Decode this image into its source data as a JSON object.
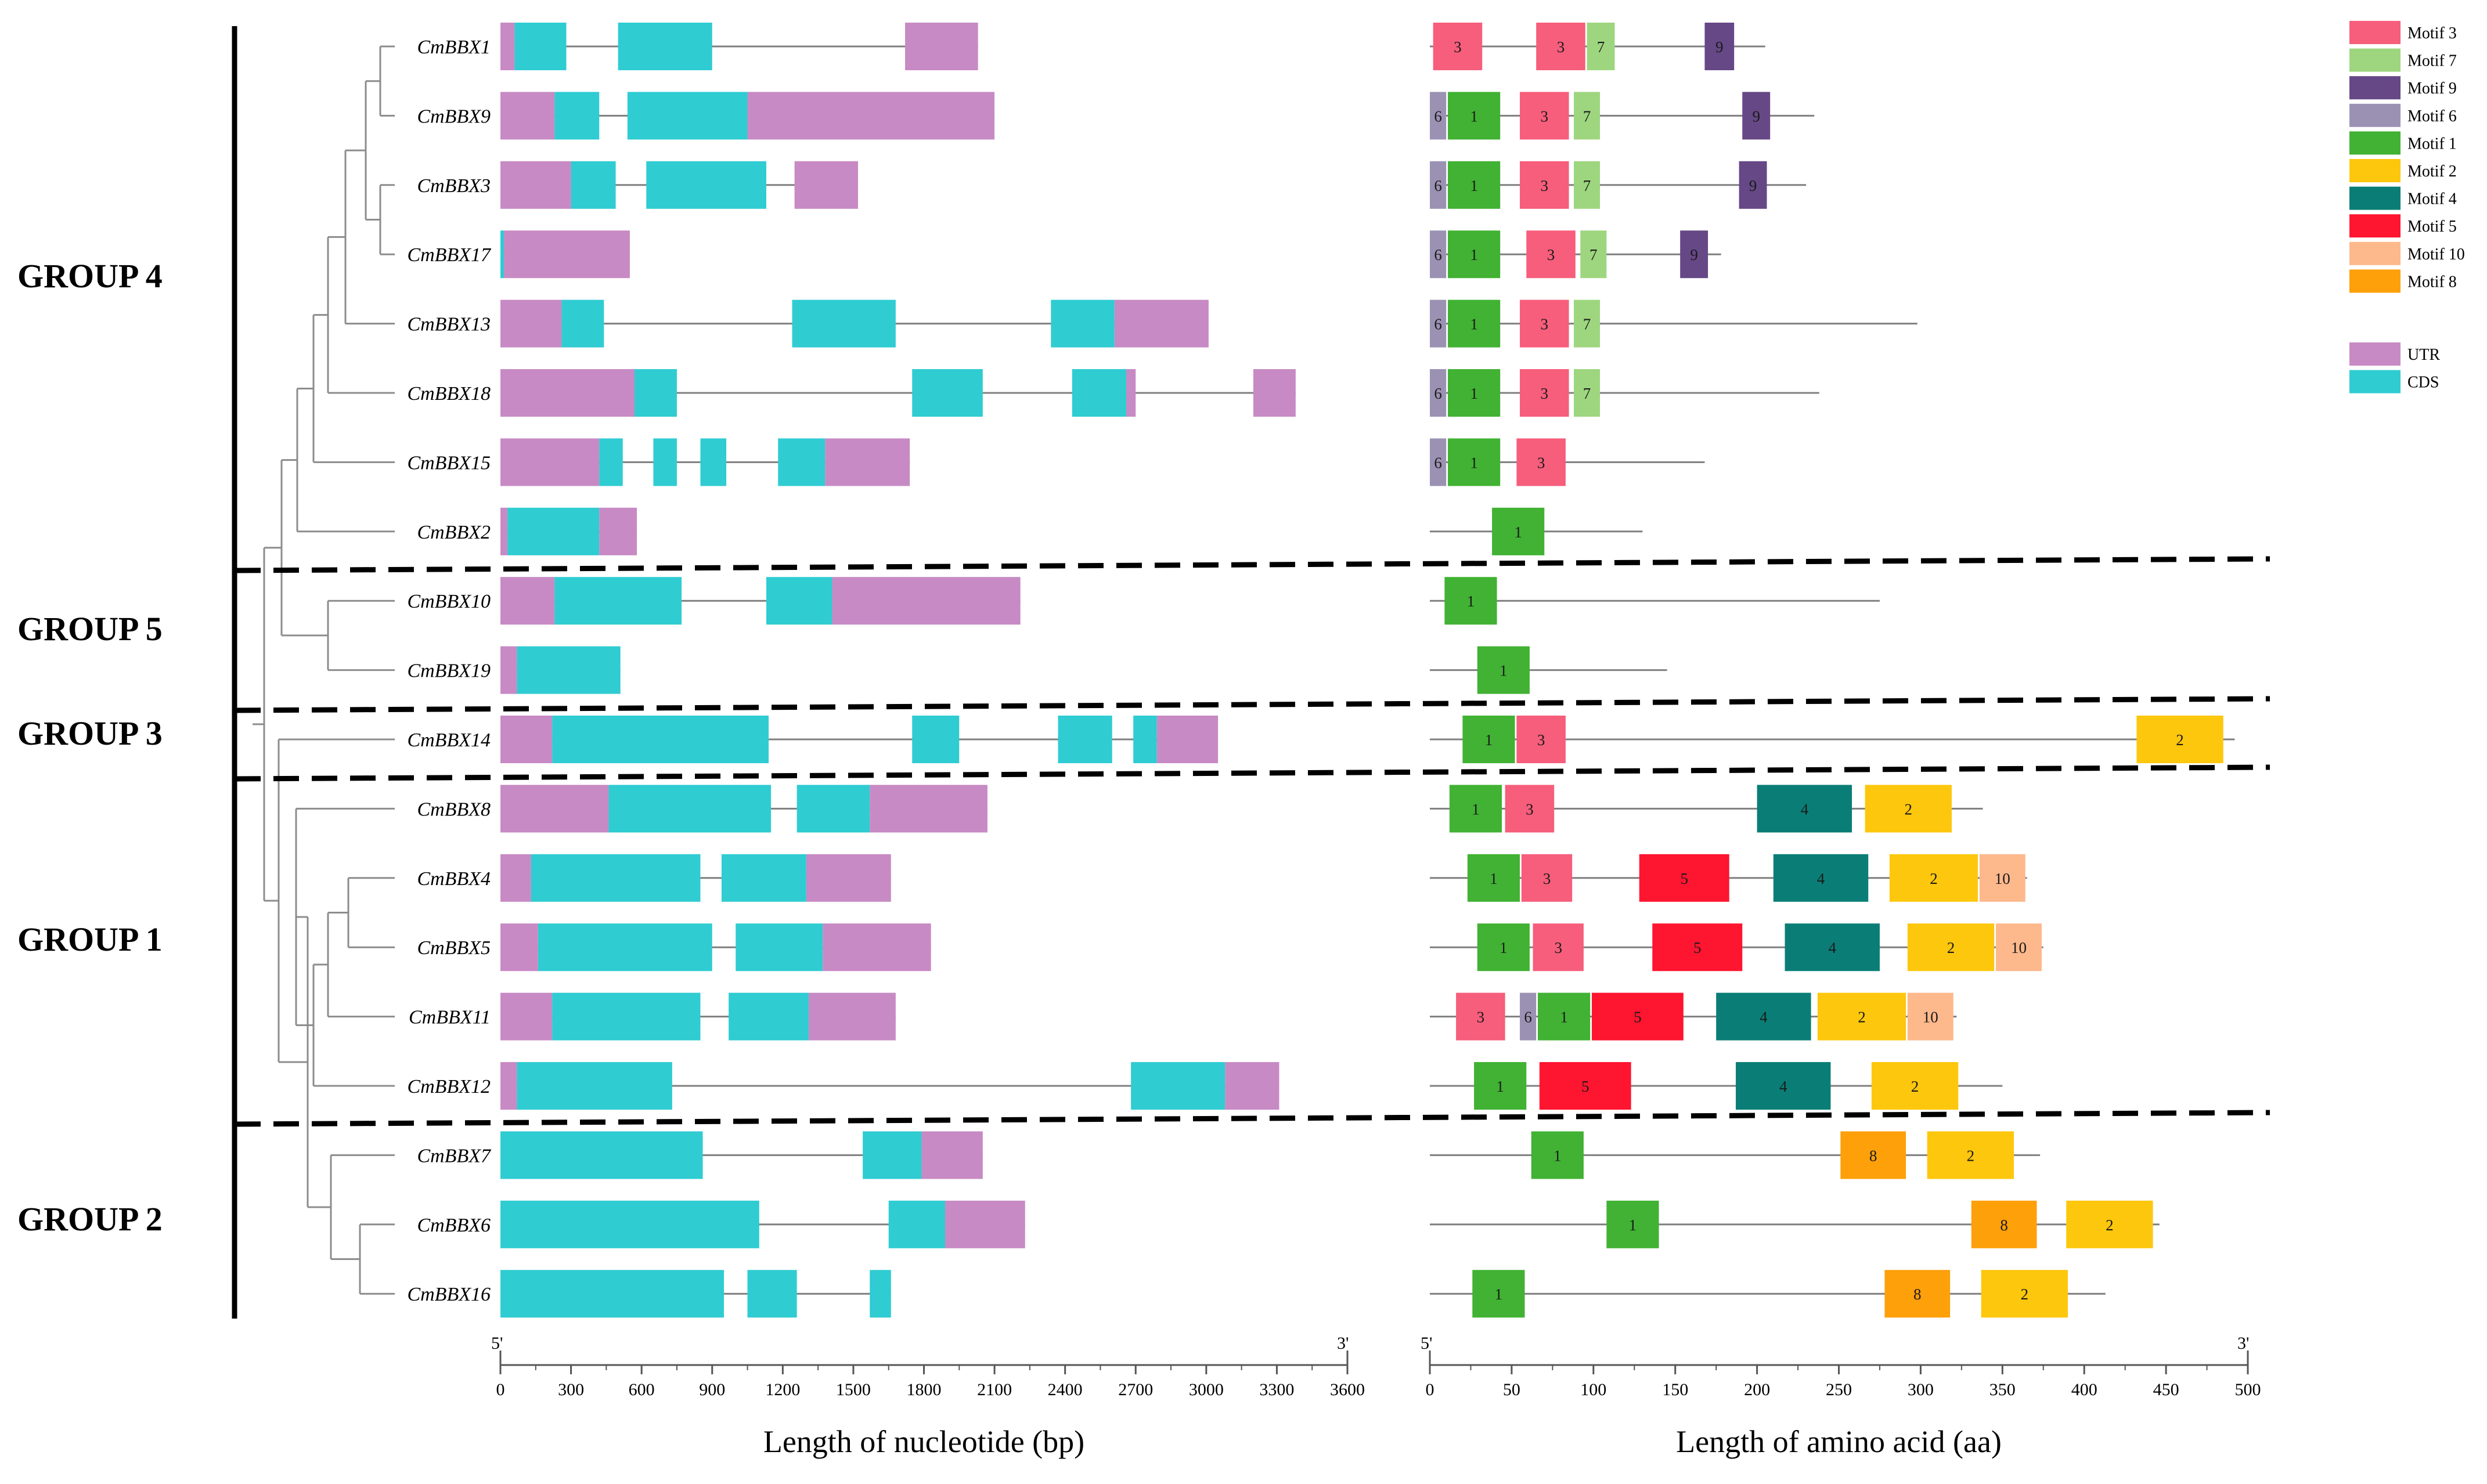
{
  "groups": [
    "GROUP 4",
    "GROUP 5",
    "GROUP 3",
    "GROUP 1",
    "GROUP 2"
  ],
  "genes": [
    {
      "name": "CmBBX1",
      "group": "GROUP 4",
      "length_bp": 2030,
      "length_aa": 205,
      "structure": [
        [
          "UTR",
          0,
          60
        ],
        [
          "CDS",
          60,
          280
        ],
        [
          "CDS",
          500,
          900
        ],
        [
          "UTR",
          1720,
          2030
        ]
      ],
      "motifs": [
        [
          3,
          2,
          32
        ],
        [
          3,
          65,
          95
        ],
        [
          7,
          96,
          113
        ],
        [
          9,
          168,
          186
        ]
      ]
    },
    {
      "name": "CmBBX9",
      "group": "GROUP 4",
      "length_bp": 2100,
      "length_aa": 235,
      "structure": [
        [
          "UTR",
          0,
          230
        ],
        [
          "CDS",
          230,
          420
        ],
        [
          "CDS",
          540,
          1050
        ],
        [
          "UTR",
          1050,
          2100
        ]
      ],
      "motifs": [
        [
          6,
          0,
          10
        ],
        [
          1,
          11,
          43
        ],
        [
          3,
          55,
          85
        ],
        [
          7,
          88,
          104
        ],
        [
          9,
          191,
          208
        ]
      ]
    },
    {
      "name": "CmBBX3",
      "group": "GROUP 4",
      "length_bp": 1520,
      "length_aa": 230,
      "structure": [
        [
          "UTR",
          0,
          300
        ],
        [
          "CDS",
          300,
          490
        ],
        [
          "CDS",
          620,
          1130
        ],
        [
          "UTR",
          1250,
          1520
        ]
      ],
      "motifs": [
        [
          6,
          0,
          10
        ],
        [
          1,
          11,
          43
        ],
        [
          3,
          55,
          85
        ],
        [
          7,
          88,
          104
        ],
        [
          9,
          189,
          206
        ]
      ]
    },
    {
      "name": "CmBBX17",
      "group": "GROUP 4",
      "length_bp": 550,
      "length_aa": 178,
      "structure": [
        [
          "CDS",
          0,
          15
        ],
        [
          "UTR",
          15,
          550
        ]
      ],
      "motifs": [
        [
          6,
          0,
          10
        ],
        [
          1,
          11,
          43
        ],
        [
          3,
          59,
          89
        ],
        [
          7,
          92,
          108
        ],
        [
          9,
          153,
          170
        ]
      ]
    },
    {
      "name": "CmBBX13",
      "group": "GROUP 4",
      "length_bp": 3010,
      "length_aa": 298,
      "structure": [
        [
          "UTR",
          0,
          260
        ],
        [
          "CDS",
          260,
          440
        ],
        [
          "CDS",
          1240,
          1680
        ],
        [
          "CDS",
          2340,
          2610
        ],
        [
          "UTR",
          2610,
          3010
        ]
      ],
      "motifs": [
        [
          6,
          0,
          10
        ],
        [
          1,
          11,
          43
        ],
        [
          3,
          55,
          85
        ],
        [
          7,
          88,
          104
        ]
      ]
    },
    {
      "name": "CmBBX18",
      "group": "GROUP 4",
      "length_bp": 3380,
      "length_aa": 238,
      "structure": [
        [
          "UTR",
          0,
          570
        ],
        [
          "CDS",
          570,
          750
        ],
        [
          "CDS",
          1750,
          2050
        ],
        [
          "CDS",
          2430,
          2660
        ],
        [
          "UTR",
          2660,
          2700
        ],
        [
          "UTR",
          3200,
          3380
        ]
      ],
      "motifs": [
        [
          6,
          0,
          10
        ],
        [
          1,
          11,
          43
        ],
        [
          3,
          55,
          85
        ],
        [
          7,
          88,
          104
        ]
      ]
    },
    {
      "name": "CmBBX15",
      "group": "GROUP 4",
      "length_bp": 1740,
      "length_aa": 168,
      "structure": [
        [
          "UTR",
          0,
          420
        ],
        [
          "CDS",
          420,
          520
        ],
        [
          "CDS",
          650,
          750
        ],
        [
          "CDS",
          850,
          960
        ],
        [
          "CDS",
          1180,
          1380
        ],
        [
          "UTR",
          1380,
          1740
        ]
      ],
      "motifs": [
        [
          6,
          0,
          10
        ],
        [
          1,
          11,
          43
        ],
        [
          3,
          53,
          83
        ]
      ]
    },
    {
      "name": "CmBBX2",
      "group": "GROUP 4",
      "length_bp": 580,
      "length_aa": 130,
      "structure": [
        [
          "UTR",
          0,
          30
        ],
        [
          "CDS",
          30,
          420
        ],
        [
          "UTR",
          420,
          580
        ]
      ],
      "motifs": [
        [
          1,
          38,
          70
        ]
      ]
    },
    {
      "name": "CmBBX10",
      "group": "GROUP 5",
      "length_bp": 2210,
      "length_aa": 275,
      "structure": [
        [
          "UTR",
          0,
          230
        ],
        [
          "CDS",
          230,
          770
        ],
        [
          "CDS",
          1130,
          1410
        ],
        [
          "UTR",
          1410,
          2210
        ]
      ],
      "motifs": [
        [
          1,
          9,
          41
        ]
      ]
    },
    {
      "name": "CmBBX19",
      "group": "GROUP 5",
      "length_bp": 510,
      "length_aa": 145,
      "structure": [
        [
          "UTR",
          0,
          70
        ],
        [
          "CDS",
          70,
          510
        ]
      ],
      "motifs": [
        [
          1,
          29,
          61
        ]
      ]
    },
    {
      "name": "CmBBX14",
      "group": "GROUP 3",
      "length_bp": 3050,
      "length_aa": 492,
      "structure": [
        [
          "UTR",
          0,
          220
        ],
        [
          "CDS",
          220,
          1140
        ],
        [
          "CDS",
          1750,
          1950
        ],
        [
          "CDS",
          2370,
          2600
        ],
        [
          "CDS",
          2690,
          2790
        ],
        [
          "UTR",
          2790,
          3050
        ]
      ],
      "motifs": [
        [
          1,
          20,
          52
        ],
        [
          3,
          53,
          83
        ],
        [
          2,
          432,
          485
        ]
      ]
    },
    {
      "name": "CmBBX8",
      "group": "GROUP 1",
      "length_bp": 2070,
      "length_aa": 338,
      "structure": [
        [
          "UTR",
          0,
          460
        ],
        [
          "CDS",
          460,
          1150
        ],
        [
          "CDS",
          1260,
          1570
        ],
        [
          "UTR",
          1570,
          2070
        ]
      ],
      "motifs": [
        [
          1,
          12,
          44
        ],
        [
          3,
          46,
          76
        ],
        [
          4,
          200,
          258
        ],
        [
          2,
          266,
          319
        ]
      ]
    },
    {
      "name": "CmBBX4",
      "group": "GROUP 1",
      "length_bp": 1660,
      "length_aa": 365,
      "structure": [
        [
          "UTR",
          0,
          130
        ],
        [
          "CDS",
          130,
          850
        ],
        [
          "CDS",
          940,
          1300
        ],
        [
          "UTR",
          1300,
          1660
        ]
      ],
      "motifs": [
        [
          1,
          23,
          55
        ],
        [
          3,
          56,
          87
        ],
        [
          5,
          128,
          183
        ],
        [
          4,
          210,
          268
        ],
        [
          2,
          281,
          335
        ],
        [
          10,
          336,
          364
        ]
      ]
    },
    {
      "name": "CmBBX5",
      "group": "GROUP 1",
      "length_bp": 1830,
      "length_aa": 375,
      "structure": [
        [
          "UTR",
          0,
          160
        ],
        [
          "CDS",
          160,
          900
        ],
        [
          "CDS",
          1000,
          1370
        ],
        [
          "UTR",
          1370,
          1830
        ]
      ],
      "motifs": [
        [
          1,
          29,
          61
        ],
        [
          3,
          63,
          94
        ],
        [
          5,
          136,
          191
        ],
        [
          4,
          217,
          275
        ],
        [
          2,
          292,
          345
        ],
        [
          10,
          346,
          374
        ]
      ]
    },
    {
      "name": "CmBBX11",
      "group": "GROUP 1",
      "length_bp": 1680,
      "length_aa": 322,
      "structure": [
        [
          "UTR",
          0,
          220
        ],
        [
          "CDS",
          220,
          850
        ],
        [
          "CDS",
          970,
          1310
        ],
        [
          "UTR",
          1310,
          1680
        ]
      ],
      "motifs": [
        [
          3,
          16,
          46
        ],
        [
          6,
          55,
          65
        ],
        [
          1,
          66,
          98
        ],
        [
          5,
          99,
          155
        ],
        [
          4,
          175,
          233
        ],
        [
          2,
          237,
          291
        ],
        [
          10,
          292,
          320
        ]
      ]
    },
    {
      "name": "CmBBX12",
      "group": "GROUP 1",
      "length_bp": 3310,
      "length_aa": 350,
      "structure": [
        [
          "UTR",
          0,
          70
        ],
        [
          "CDS",
          70,
          730
        ],
        [
          "CDS",
          2680,
          3080
        ],
        [
          "UTR",
          3080,
          3310
        ]
      ],
      "motifs": [
        [
          1,
          27,
          59
        ],
        [
          5,
          67,
          123
        ],
        [
          4,
          187,
          245
        ],
        [
          2,
          270,
          323
        ]
      ]
    },
    {
      "name": "CmBBX7",
      "group": "GROUP 2",
      "length_bp": 2050,
      "length_aa": 373,
      "structure": [
        [
          "CDS",
          0,
          860
        ],
        [
          "CDS",
          1540,
          1790
        ],
        [
          "UTR",
          1790,
          2050
        ]
      ],
      "motifs": [
        [
          1,
          62,
          94
        ],
        [
          8,
          251,
          291
        ],
        [
          2,
          304,
          357
        ]
      ]
    },
    {
      "name": "CmBBX6",
      "group": "GROUP 2",
      "length_bp": 2230,
      "length_aa": 446,
      "structure": [
        [
          "CDS",
          0,
          1100
        ],
        [
          "CDS",
          1650,
          1890
        ],
        [
          "UTR",
          1890,
          2230
        ]
      ],
      "motifs": [
        [
          1,
          108,
          140
        ],
        [
          8,
          331,
          371
        ],
        [
          2,
          389,
          442
        ]
      ]
    },
    {
      "name": "CmBBX16",
      "group": "GROUP 2",
      "length_bp": 1660,
      "length_aa": 413,
      "structure": [
        [
          "CDS",
          0,
          950
        ],
        [
          "CDS",
          1050,
          1260
        ],
        [
          "CDS",
          1570,
          1660
        ]
      ],
      "motifs": [
        [
          1,
          26,
          58
        ],
        [
          8,
          278,
          318
        ],
        [
          2,
          337,
          390
        ]
      ]
    }
  ],
  "motif_legend": [
    {
      "motif": 3,
      "label": "Motif 3",
      "color": "#F65E7C"
    },
    {
      "motif": 7,
      "label": "Motif 7",
      "color": "#9ED67F"
    },
    {
      "motif": 9,
      "label": "Motif 9",
      "color": "#664886"
    },
    {
      "motif": 6,
      "label": "Motif 6",
      "color": "#9B92B3"
    },
    {
      "motif": 1,
      "label": "Motif 1",
      "color": "#41B233"
    },
    {
      "motif": 2,
      "label": "Motif 2",
      "color": "#FDC70D"
    },
    {
      "motif": 4,
      "label": "Motif 4",
      "color": "#0A7E76"
    },
    {
      "motif": 5,
      "label": "Motif 5",
      "color": "#FE1530"
    },
    {
      "motif": 10,
      "label": "Motif 10",
      "color": "#FDB88C"
    },
    {
      "motif": 8,
      "label": "Motif 8",
      "color": "#FDA00A"
    }
  ],
  "structure_legend": [
    {
      "type": "UTR",
      "label": "UTR",
      "color": "#C78AC4"
    },
    {
      "type": "CDS",
      "label": "CDS",
      "color": "#2FCCD2"
    }
  ],
  "nucleotide_axis": {
    "title": "Length of nucleotide (bp)",
    "ticks": [
      0,
      300,
      600,
      900,
      1200,
      1500,
      1800,
      2100,
      2400,
      2700,
      3000,
      3300,
      3600
    ],
    "range": [
      0,
      3600
    ],
    "left_end": "5'",
    "right_end": "3'"
  },
  "amino_axis": {
    "title": "Length of amino acid (aa)",
    "ticks": [
      0,
      50,
      100,
      150,
      200,
      250,
      300,
      350,
      400,
      450,
      500
    ],
    "range": [
      0,
      500
    ],
    "left_end": "5'",
    "right_end": "3'"
  },
  "colors": {
    "line": "#7f7f7f",
    "tree": "#8c8c8c",
    "black": "#000000"
  }
}
